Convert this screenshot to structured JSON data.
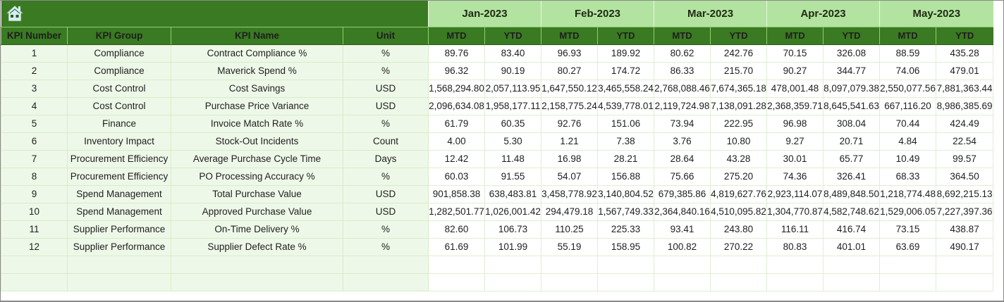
{
  "sheet": {
    "home_icon": "home-icon",
    "colors": {
      "header_dark_green": "#3a7a22",
      "month_header_light_green": "#b3e3a0",
      "fixed_col_bg": "#eef8e8",
      "grid": "#d8ecc8"
    },
    "months": [
      "Jan-2023",
      "Feb-2023",
      "Mar-2023",
      "Apr-2023",
      "May-2023"
    ],
    "columns": {
      "kpi_number": "KPI Number",
      "kpi_group": "KPI Group",
      "kpi_name": "KPI Name",
      "unit": "Unit",
      "mtd": "MTD",
      "ytd": "YTD"
    },
    "rows": [
      {
        "num": "1",
        "group": "Compliance",
        "name": "Contract Compliance %",
        "unit": "%",
        "values": [
          "89.76",
          "83.40",
          "96.93",
          "189.92",
          "80.62",
          "242.76",
          "70.15",
          "326.08",
          "88.59",
          "435.28"
        ]
      },
      {
        "num": "2",
        "group": "Compliance",
        "name": "Maverick Spend %",
        "unit": "%",
        "values": [
          "96.32",
          "90.19",
          "80.27",
          "174.72",
          "86.33",
          "215.70",
          "90.27",
          "344.77",
          "74.06",
          "479.01"
        ]
      },
      {
        "num": "3",
        "group": "Cost Control",
        "name": "Cost Savings",
        "unit": "USD",
        "values": [
          "1,568,294.80",
          "2,057,113.95",
          "1,647,550.12",
          "3,465,558.24",
          "2,768,088.46",
          "7,674,365.18",
          "478,001.48",
          "8,097,079.38",
          "2,550,077.56",
          "7,881,363.44"
        ]
      },
      {
        "num": "4",
        "group": "Cost Control",
        "name": "Purchase Price Variance",
        "unit": "USD",
        "values": [
          "2,096,634.08",
          "1,958,177.11",
          "2,158,775.24",
          "4,539,778.01",
          "2,119,724.98",
          "7,138,091.28",
          "2,368,359.71",
          "8,645,541.63",
          "667,116.20",
          "8,986,385.69"
        ]
      },
      {
        "num": "5",
        "group": "Finance",
        "name": "Invoice Match Rate %",
        "unit": "%",
        "values": [
          "61.79",
          "60.35",
          "92.76",
          "151.06",
          "73.94",
          "222.95",
          "96.98",
          "308.04",
          "70.44",
          "424.49"
        ]
      },
      {
        "num": "6",
        "group": "Inventory Impact",
        "name": "Stock-Out Incidents",
        "unit": "Count",
        "values": [
          "4.00",
          "5.30",
          "1.21",
          "7.38",
          "3.76",
          "10.80",
          "9.27",
          "20.71",
          "4.84",
          "22.54"
        ]
      },
      {
        "num": "7",
        "group": "Procurement Efficiency",
        "name": "Average Purchase Cycle Time",
        "unit": "Days",
        "values": [
          "12.42",
          "11.48",
          "16.98",
          "28.21",
          "28.64",
          "43.28",
          "30.01",
          "65.77",
          "10.49",
          "99.57"
        ]
      },
      {
        "num": "8",
        "group": "Procurement Efficiency",
        "name": "PO Processing Accuracy %",
        "unit": "%",
        "values": [
          "60.03",
          "91.55",
          "54.07",
          "156.88",
          "75.66",
          "275.20",
          "74.36",
          "326.41",
          "68.33",
          "364.50"
        ]
      },
      {
        "num": "9",
        "group": "Spend Management",
        "name": "Total Purchase Value",
        "unit": "USD",
        "values": [
          "901,858.38",
          "638,483.81",
          "3,458,778.92",
          "3,140,804.52",
          "679,385.86",
          "4,819,627.76",
          "2,923,114.07",
          "8,489,848.50",
          "1,218,774.48",
          "8,692,215.13"
        ]
      },
      {
        "num": "10",
        "group": "Spend Management",
        "name": "Approved Purchase Value",
        "unit": "USD",
        "values": [
          "1,282,501.77",
          "1,026,001.42",
          "294,479.18",
          "1,567,749.33",
          "2,364,840.16",
          "4,510,095.82",
          "1,304,770.87",
          "4,582,748.62",
          "1,529,006.05",
          "7,227,397.36"
        ]
      },
      {
        "num": "11",
        "group": "Supplier Performance",
        "name": "On-Time Delivery %",
        "unit": "%",
        "values": [
          "82.60",
          "106.73",
          "110.25",
          "225.33",
          "93.41",
          "243.80",
          "116.11",
          "416.74",
          "73.15",
          "438.87"
        ]
      },
      {
        "num": "12",
        "group": "Supplier Performance",
        "name": "Supplier Defect Rate %",
        "unit": "%",
        "values": [
          "61.69",
          "101.99",
          "55.19",
          "158.95",
          "100.82",
          "270.22",
          "80.83",
          "401.01",
          "63.69",
          "490.17"
        ]
      }
    ],
    "empty_rows": 2
  }
}
